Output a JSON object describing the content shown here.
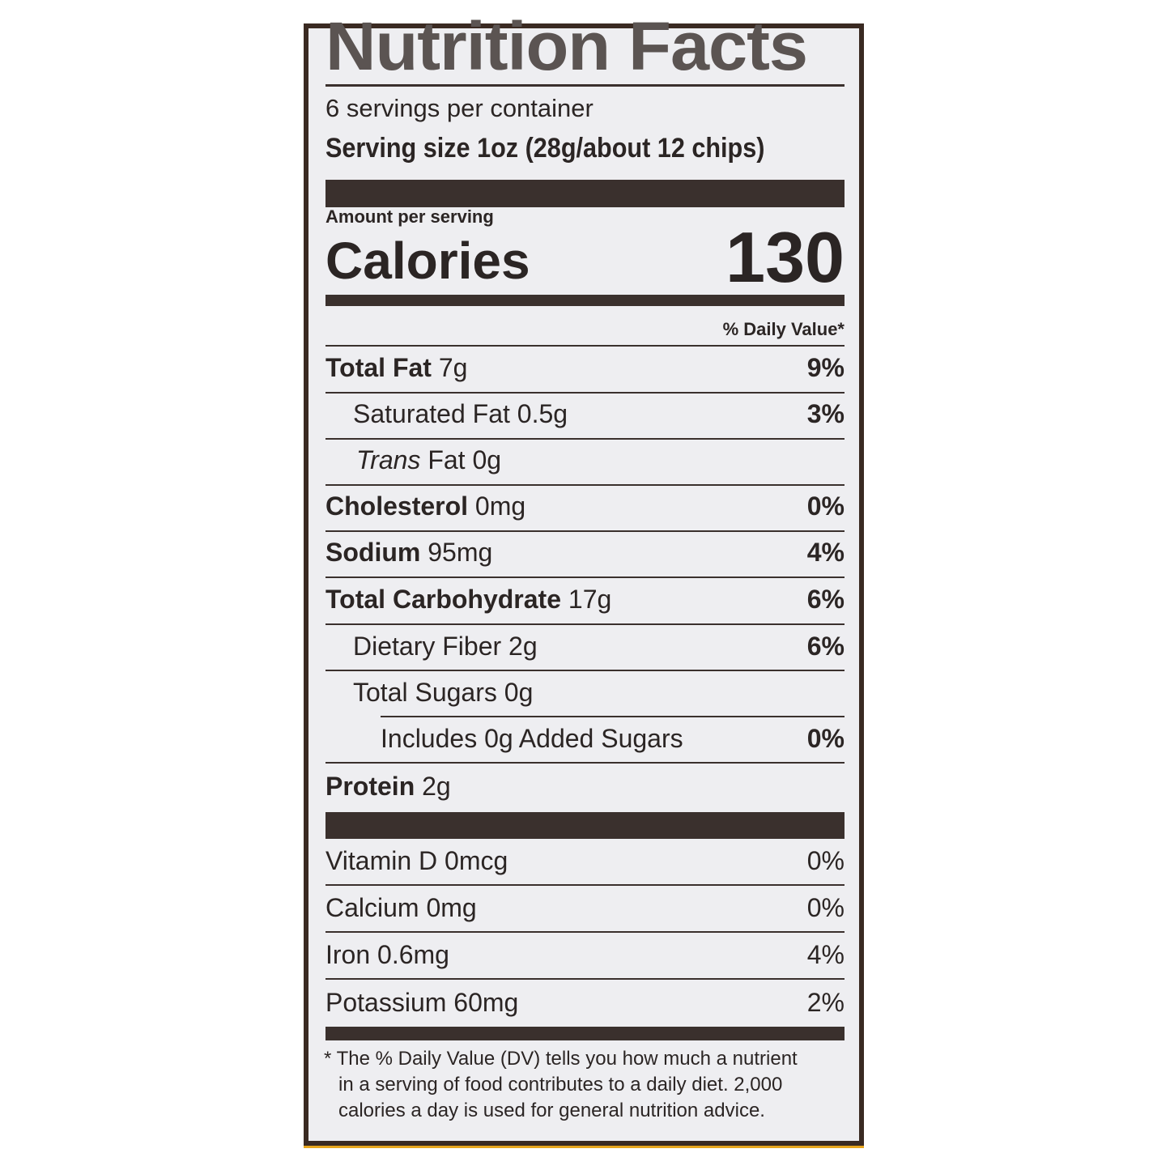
{
  "title": "Nutrition Facts",
  "servings_per_container": "6 servings per container",
  "serving_size": "Serving size 1oz (28g/about 12 chips)",
  "amount_per_serving": "Amount per serving",
  "calories_label": "Calories",
  "calories_value": "130",
  "daily_value_header": "% Daily Value*",
  "nutrients": [
    {
      "name": "Total Fat",
      "amount": "7g",
      "dv": "9%"
    },
    {
      "name": "Saturated Fat",
      "amount": "0.5g",
      "dv": "3%"
    },
    {
      "name": "Trans",
      "amount": "Fat 0g",
      "dv": ""
    },
    {
      "name": "Cholesterol",
      "amount": "0mg",
      "dv": "0%"
    },
    {
      "name": "Sodium",
      "amount": "95mg",
      "dv": "4%"
    },
    {
      "name": "Total Carbohydrate",
      "amount": "17g",
      "dv": "6%"
    },
    {
      "name": "Dietary Fiber",
      "amount": "2g",
      "dv": "6%"
    },
    {
      "name": "Total Sugars",
      "amount": "0g",
      "dv": ""
    },
    {
      "name": "Includes 0g Added Sugars",
      "amount": "",
      "dv": "0%"
    },
    {
      "name": "Protein",
      "amount": "2g",
      "dv": ""
    }
  ],
  "vitamins": [
    {
      "name": "Vitamin D 0mcg",
      "dv": "0%"
    },
    {
      "name": "Calcium 0mg",
      "dv": "0%"
    },
    {
      "name": "Iron 0.6mg",
      "dv": "4%"
    },
    {
      "name": "Potassium 60mg",
      "dv": "2%"
    }
  ],
  "footnote": [
    "* The % Daily Value (DV) tells you how much a nutrient",
    "in a serving of food contributes to a daily diet. 2,000",
    "calories a day is used for general nutrition advice."
  ],
  "colors": {
    "border": "#3a2a22",
    "background": "#eeeef1",
    "text": "#2b2524",
    "package_edge": "#e8a51c"
  }
}
